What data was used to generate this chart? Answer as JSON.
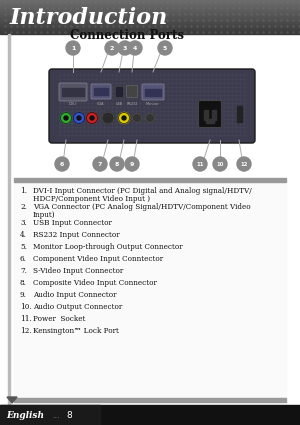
{
  "title": "Introduction",
  "section_title": "Connection Ports",
  "content_bg_color": "#f8f8f8",
  "list_items": [
    [
      "DVI-I Input Connector (PC Digital and Analog signal/HDTV/",
      "HDCP/Component Video Input )"
    ],
    [
      "VGA Connector (PC Analog Signal/HDTV/Component Video",
      "Input)"
    ],
    [
      "USB Input Connector"
    ],
    [
      "RS232 Input Connector"
    ],
    [
      "Monitor Loop-through Output Connector"
    ],
    [
      "Component Video Input Conntector"
    ],
    [
      "S-Video Input Connector"
    ],
    [
      "Composite Video Input Connector"
    ],
    [
      "Audio Input Connector"
    ],
    [
      "Audio Output Connector"
    ],
    [
      "Power  Socket"
    ],
    [
      "Kensington™ Lock Port"
    ]
  ],
  "footer_text": "English",
  "footer_page": "8",
  "projector_body_color": "#3c3c4e",
  "projector_highlight_color": "#4a4a5e",
  "header_grad_dark": "#3a3a3a",
  "header_grad_light": "#6a6a6a",
  "callout_color": "#888888",
  "list_bar_color": "#999999",
  "list_bg_color": "#ffffff",
  "footer_bg": "#111111",
  "footer_text_color": "#ffffff",
  "left_bar_color": "#aaaaaa",
  "comp_colors": [
    "#33aa33",
    "#3355cc",
    "#cc2222"
  ],
  "svideo_color": "#2a2a2a",
  "composite_color": "#ddcc00",
  "audio_color": "#333333",
  "power_color": "#111111",
  "kensington_color": "#222222"
}
